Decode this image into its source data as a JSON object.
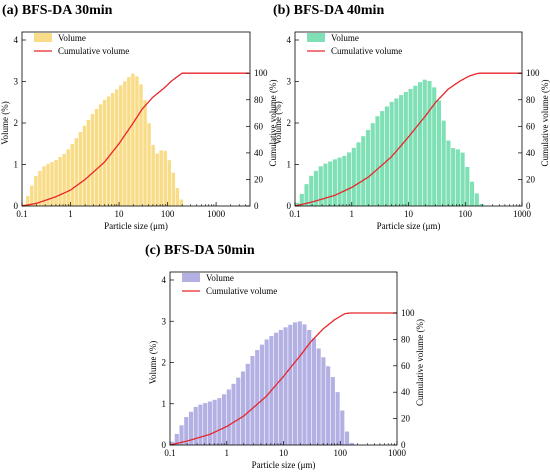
{
  "chart_data": [
    {
      "type": "bar",
      "title": "(a) BFS-DA 30min",
      "xlabel": "Particle size (μm)",
      "ylabel": "Volume (%)",
      "y2label": "Cumulative volume (%)",
      "xscale": "log",
      "xlim": [
        0.1,
        5000
      ],
      "xticks": [
        0.1,
        1,
        10,
        100,
        1000
      ],
      "xtick_labels": [
        "0.1",
        "1",
        "10",
        "100",
        "1000"
      ],
      "ylim": [
        0,
        4
      ],
      "yticks": [
        0,
        1,
        2,
        3,
        4
      ],
      "y2lim": [
        0,
        125
      ],
      "y2ticks": [
        0,
        20,
        40,
        60,
        80,
        100
      ],
      "legend": {
        "position": "top-left",
        "entries": [
          "Volume",
          "Cumulative volume"
        ]
      },
      "bar_color": "#f9dc87",
      "line_color": "#e8262b",
      "cutoff": 210,
      "volume_curve": {
        "x": [
          0.1,
          0.12,
          0.15,
          0.2,
          0.3,
          0.5,
          0.8,
          1.2,
          2,
          3,
          5,
          8,
          12,
          16,
          20,
          25,
          32,
          40,
          50,
          60,
          70,
          80,
          90,
          100,
          130,
          160,
          190,
          210
        ],
        "y": [
          0.0,
          0.1,
          0.4,
          0.75,
          0.98,
          1.1,
          1.28,
          1.55,
          1.95,
          2.25,
          2.55,
          2.75,
          2.95,
          3.1,
          3.2,
          3.1,
          2.8,
          2.15,
          1.5,
          1.25,
          1.32,
          1.36,
          1.34,
          1.25,
          0.85,
          0.45,
          0.2,
          0.05
        ]
      },
      "cumulative": {
        "x": [
          0.1,
          0.2,
          0.5,
          1,
          2,
          5,
          10,
          20,
          30,
          50,
          80,
          120,
          160,
          200,
          300,
          5000
        ],
        "y": [
          0,
          2,
          7,
          12,
          20,
          33,
          47,
          63,
          73,
          82,
          88,
          94,
          97.5,
          100,
          100,
          100
        ]
      }
    },
    {
      "type": "bar",
      "title": "(b) BFS-DA 40min",
      "xlabel": "Particle size (μm)",
      "ylabel": "Volume (%)",
      "y2label": "Cumulative volume (%)",
      "xscale": "log",
      "xlim": [
        0.1,
        1000
      ],
      "xticks": [
        0.1,
        1,
        10,
        100,
        1000
      ],
      "xtick_labels": [
        "0.1",
        "1",
        "10",
        "100",
        "1000"
      ],
      "ylim": [
        0,
        4
      ],
      "yticks": [
        0,
        1,
        2,
        3,
        4
      ],
      "y2lim": [
        0,
        125
      ],
      "y2ticks": [
        0,
        20,
        40,
        60,
        80,
        100
      ],
      "legend": {
        "position": "top-left",
        "entries": [
          "Volume",
          "Cumulative volume"
        ]
      },
      "bar_color": "#7fe0b5",
      "line_color": "#e8262b",
      "cutoff": 190,
      "volume_curve": {
        "x": [
          0.1,
          0.12,
          0.15,
          0.2,
          0.3,
          0.5,
          0.8,
          1.2,
          2,
          3,
          5,
          8,
          12,
          16,
          20,
          25,
          32,
          40,
          50,
          60,
          70,
          80,
          90,
          100,
          120,
          150,
          175,
          190
        ],
        "y": [
          0.0,
          0.15,
          0.45,
          0.75,
          0.98,
          1.12,
          1.22,
          1.45,
          1.85,
          2.2,
          2.5,
          2.7,
          2.85,
          2.98,
          3.05,
          3.0,
          2.75,
          2.2,
          1.6,
          1.4,
          1.38,
          1.35,
          1.3,
          1.15,
          0.75,
          0.4,
          0.2,
          0.05
        ]
      },
      "cumulative": {
        "x": [
          0.1,
          0.2,
          0.5,
          1,
          2,
          5,
          10,
          20,
          30,
          50,
          80,
          120,
          160,
          180,
          300,
          1000
        ],
        "y": [
          0,
          3,
          8,
          14,
          22,
          37,
          52,
          68,
          78,
          88,
          94,
          98,
          99.7,
          100,
          100,
          100
        ]
      }
    },
    {
      "type": "bar",
      "title": "(c) BFS-DA 50min",
      "xlabel": "Particle size (μm)",
      "ylabel": "Volume (%)",
      "y2label": "Cumulative volume (%)",
      "xscale": "log",
      "xlim": [
        0.1,
        1000
      ],
      "xticks": [
        0.1,
        1,
        10,
        100,
        1000
      ],
      "xtick_labels": [
        "0.1",
        "1",
        "10",
        "100",
        "1000"
      ],
      "ylim": [
        0,
        4
      ],
      "yticks": [
        0,
        1,
        2,
        3,
        4
      ],
      "y2lim": [
        0,
        125
      ],
      "y2ticks": [
        0,
        20,
        40,
        60,
        80,
        100
      ],
      "legend": {
        "position": "top-left",
        "entries": [
          "Volume",
          "Cumulative volume"
        ]
      },
      "bar_color": "#b3b0e3",
      "line_color": "#e8262b",
      "cutoff": 150,
      "volume_curve": {
        "x": [
          0.1,
          0.12,
          0.15,
          0.2,
          0.3,
          0.5,
          0.8,
          1.2,
          2,
          3,
          5,
          8,
          12,
          16,
          20,
          25,
          32,
          40,
          50,
          60,
          70,
          80,
          90,
          100,
          120,
          140,
          150
        ],
        "y": [
          0.0,
          0.15,
          0.4,
          0.7,
          0.95,
          1.05,
          1.15,
          1.4,
          1.8,
          2.2,
          2.55,
          2.75,
          2.88,
          2.97,
          3.0,
          2.9,
          2.7,
          2.4,
          2.15,
          1.95,
          1.75,
          1.55,
          1.3,
          1.1,
          0.6,
          0.2,
          0.05
        ]
      },
      "cumulative": {
        "x": [
          0.1,
          0.2,
          0.5,
          1,
          2,
          5,
          10,
          20,
          30,
          50,
          80,
          120,
          150,
          300,
          1000
        ],
        "y": [
          0,
          3,
          8,
          14,
          22,
          37,
          52,
          68,
          78,
          88,
          95,
          99.5,
          100,
          100,
          100
        ]
      }
    }
  ]
}
